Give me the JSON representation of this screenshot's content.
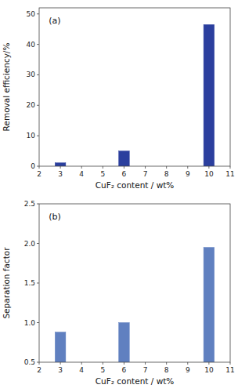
{
  "chart_data": [
    {
      "type": "bar",
      "x": [
        3,
        6,
        10
      ],
      "values": [
        1.1,
        5.0,
        46.5
      ],
      "color": "#2B3F9E",
      "xlim": [
        2,
        11
      ],
      "ylim": [
        0,
        52
      ],
      "xticks": [
        2,
        3,
        4,
        5,
        6,
        7,
        8,
        9,
        10,
        11
      ],
      "yticks": [
        0,
        10,
        20,
        30,
        40,
        50
      ],
      "x_label": "CuF₂ content / wt%",
      "y_label": "Removal efficiency/%",
      "annotations": [
        "(a)"
      ],
      "grid": false
    },
    {
      "type": "bar",
      "x": [
        3,
        6,
        10
      ],
      "values": [
        0.88,
        1.0,
        1.95
      ],
      "color": "#6080C0",
      "xlim": [
        2,
        11
      ],
      "ylim": [
        0.5,
        2.5
      ],
      "xticks": [
        2,
        3,
        4,
        5,
        6,
        7,
        8,
        9,
        10,
        11
      ],
      "yticks": [
        0.5,
        {
          "value": 1.0,
          "label": "1.0"
        },
        1.5,
        {
          "value": 2.0,
          "label": "2.0"
        },
        2.5
      ],
      "x_label": "CuF₂ content / wt%",
      "y_label": "Separation factor",
      "annotations": [
        "(b)"
      ],
      "grid": false
    }
  ]
}
